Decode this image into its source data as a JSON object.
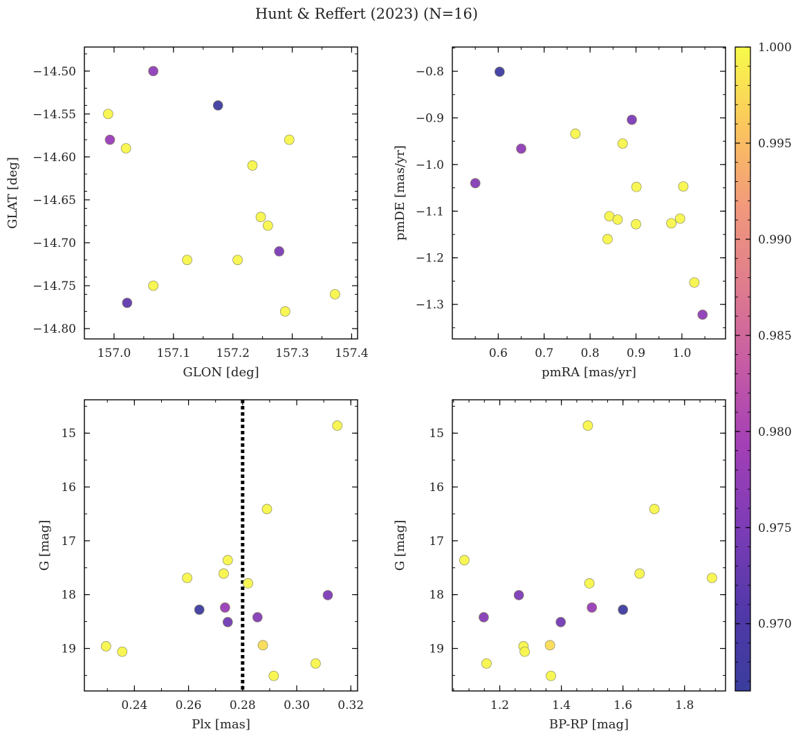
{
  "figure": {
    "title": "Hunt & Reffert (2023) (N=16)",
    "colormap": "plasma",
    "colorbar": {
      "range": [
        0.9665,
        1.0
      ],
      "ticks": [
        0.97,
        0.975,
        0.98,
        0.985,
        0.99,
        0.995,
        1.0
      ],
      "tick_labels": [
        "0.970",
        "0.975",
        "0.980",
        "0.985",
        "0.990",
        "0.995",
        "1.000"
      ]
    }
  },
  "chart_data": [
    {
      "type": "scatter",
      "xlabel": "GLON [deg]",
      "ylabel": "GLAT [deg]",
      "xlim": [
        156.95,
        157.41
      ],
      "ylim": [
        -14.812,
        -14.472
      ],
      "y_inverted": false,
      "xticks": [
        157.0,
        157.1,
        157.2,
        157.3,
        157.4
      ],
      "xtick_labels": [
        "157.0",
        "157.1",
        "157.2",
        "157.3",
        "157.4"
      ],
      "yticks": [
        -14.5,
        -14.55,
        -14.6,
        -14.65,
        -14.7,
        -14.75,
        -14.8
      ],
      "ytick_labels": [
        "−14.50",
        "−14.55",
        "−14.60",
        "−14.65",
        "−14.70",
        "−14.75",
        "−14.80"
      ],
      "points": [
        {
          "x": 157.066,
          "y": -14.5,
          "c": 0.977
        },
        {
          "x": 157.175,
          "y": -14.54,
          "c": 0.9675
        },
        {
          "x": 156.99,
          "y": -14.55,
          "c": 0.9995
        },
        {
          "x": 156.993,
          "y": -14.58,
          "c": 0.978
        },
        {
          "x": 157.02,
          "y": -14.59,
          "c": 0.9995
        },
        {
          "x": 157.295,
          "y": -14.58,
          "c": 0.9995
        },
        {
          "x": 157.233,
          "y": -14.61,
          "c": 0.9995
        },
        {
          "x": 157.247,
          "y": -14.67,
          "c": 0.9995
        },
        {
          "x": 157.259,
          "y": -14.68,
          "c": 0.9995
        },
        {
          "x": 157.278,
          "y": -14.71,
          "c": 0.975
        },
        {
          "x": 157.123,
          "y": -14.72,
          "c": 0.9995
        },
        {
          "x": 157.208,
          "y": -14.72,
          "c": 0.9995
        },
        {
          "x": 157.066,
          "y": -14.75,
          "c": 0.9995
        },
        {
          "x": 157.022,
          "y": -14.77,
          "c": 0.972
        },
        {
          "x": 157.372,
          "y": -14.76,
          "c": 0.9995
        },
        {
          "x": 157.288,
          "y": -14.78,
          "c": 0.9995
        }
      ]
    },
    {
      "type": "scatter",
      "xlabel": "pmRA [mas/yr]",
      "ylabel": "pmDE [mas/yr]",
      "xlim": [
        0.5,
        1.095
      ],
      "ylim": [
        -1.374,
        -0.748
      ],
      "y_inverted": false,
      "xticks": [
        0.6,
        0.7,
        0.8,
        0.9,
        1.0
      ],
      "xtick_labels": [
        "0.6",
        "0.7",
        "0.8",
        "0.9",
        "1.0"
      ],
      "yticks": [
        -0.8,
        -0.9,
        -1.0,
        -1.1,
        -1.2,
        -1.3
      ],
      "ytick_labels": [
        "−0.8",
        "−0.9",
        "−1.0",
        "−1.1",
        "−1.2",
        "−1.3"
      ],
      "points": [
        {
          "x": 0.603,
          "y": -0.801,
          "c": 0.9675
        },
        {
          "x": 0.891,
          "y": -0.904,
          "c": 0.975
        },
        {
          "x": 0.768,
          "y": -0.934,
          "c": 0.9995
        },
        {
          "x": 0.871,
          "y": -0.955,
          "c": 0.9995
        },
        {
          "x": 0.65,
          "y": -0.966,
          "c": 0.977
        },
        {
          "x": 0.55,
          "y": -1.04,
          "c": 0.976
        },
        {
          "x": 0.901,
          "y": -1.048,
          "c": 0.9995
        },
        {
          "x": 1.003,
          "y": -1.047,
          "c": 0.9995
        },
        {
          "x": 0.842,
          "y": -1.111,
          "c": 0.9995
        },
        {
          "x": 0.86,
          "y": -1.118,
          "c": 0.9995
        },
        {
          "x": 0.996,
          "y": -1.116,
          "c": 0.9995
        },
        {
          "x": 0.9,
          "y": -1.128,
          "c": 0.9995
        },
        {
          "x": 0.977,
          "y": -1.126,
          "c": 0.9995
        },
        {
          "x": 0.838,
          "y": -1.16,
          "c": 0.9995
        },
        {
          "x": 1.027,
          "y": -1.253,
          "c": 0.9995
        },
        {
          "x": 1.045,
          "y": -1.322,
          "c": 0.977
        }
      ]
    },
    {
      "type": "scatter",
      "xlabel": "Plx [mas]",
      "ylabel": "G [mag]",
      "xlim": [
        0.2215,
        0.3225
      ],
      "ylim": [
        14.38,
        19.79
      ],
      "y_inverted": true,
      "xticks": [
        0.24,
        0.26,
        0.28,
        0.3,
        0.32
      ],
      "xtick_labels": [
        "0.24",
        "0.26",
        "0.28",
        "0.30",
        "0.32"
      ],
      "yticks": [
        15,
        16,
        17,
        18,
        19
      ],
      "ytick_labels": [
        "15",
        "16",
        "17",
        "18",
        "19"
      ],
      "vline": {
        "x": 0.28,
        "style": "dotted",
        "color": "#000000"
      },
      "points": [
        {
          "x": 0.315,
          "y": 14.86,
          "c": 0.9995
        },
        {
          "x": 0.289,
          "y": 16.41,
          "c": 0.9995
        },
        {
          "x": 0.2745,
          "y": 17.36,
          "c": 0.9995
        },
        {
          "x": 0.273,
          "y": 17.61,
          "c": 0.9995
        },
        {
          "x": 0.2595,
          "y": 17.69,
          "c": 0.9995
        },
        {
          "x": 0.282,
          "y": 17.79,
          "c": 0.9995
        },
        {
          "x": 0.3115,
          "y": 18.01,
          "c": 0.975
        },
        {
          "x": 0.2735,
          "y": 18.24,
          "c": 0.978
        },
        {
          "x": 0.264,
          "y": 18.28,
          "c": 0.9675
        },
        {
          "x": 0.2855,
          "y": 18.42,
          "c": 0.976
        },
        {
          "x": 0.2745,
          "y": 18.51,
          "c": 0.974
        },
        {
          "x": 0.2875,
          "y": 18.94,
          "c": 0.9975
        },
        {
          "x": 0.2295,
          "y": 18.96,
          "c": 0.9995
        },
        {
          "x": 0.2355,
          "y": 19.06,
          "c": 0.9995
        },
        {
          "x": 0.307,
          "y": 19.28,
          "c": 0.9995
        },
        {
          "x": 0.2915,
          "y": 19.51,
          "c": 0.9995
        }
      ]
    },
    {
      "type": "scatter",
      "xlabel": "BP-RP [mag]",
      "ylabel": "G [mag]",
      "xlim": [
        1.046,
        1.933
      ],
      "ylim": [
        14.38,
        19.79
      ],
      "y_inverted": true,
      "xticks": [
        1.2,
        1.4,
        1.6,
        1.8
      ],
      "xtick_labels": [
        "1.2",
        "1.4",
        "1.6",
        "1.8"
      ],
      "yticks": [
        15,
        16,
        17,
        18,
        19
      ],
      "ytick_labels": [
        "15",
        "16",
        "17",
        "18",
        "19"
      ],
      "points": [
        {
          "x": 1.486,
          "y": 14.86,
          "c": 0.9995
        },
        {
          "x": 1.702,
          "y": 16.41,
          "c": 0.9995
        },
        {
          "x": 1.085,
          "y": 17.36,
          "c": 0.9995
        },
        {
          "x": 1.654,
          "y": 17.61,
          "c": 0.9995
        },
        {
          "x": 1.889,
          "y": 17.69,
          "c": 0.9995
        },
        {
          "x": 1.491,
          "y": 17.79,
          "c": 0.9995
        },
        {
          "x": 1.262,
          "y": 18.01,
          "c": 0.975
        },
        {
          "x": 1.499,
          "y": 18.24,
          "c": 0.978
        },
        {
          "x": 1.6,
          "y": 18.28,
          "c": 0.9675
        },
        {
          "x": 1.148,
          "y": 18.42,
          "c": 0.976
        },
        {
          "x": 1.398,
          "y": 18.51,
          "c": 0.974
        },
        {
          "x": 1.277,
          "y": 18.96,
          "c": 0.9995
        },
        {
          "x": 1.363,
          "y": 18.94,
          "c": 0.9975
        },
        {
          "x": 1.281,
          "y": 19.06,
          "c": 0.9995
        },
        {
          "x": 1.157,
          "y": 19.28,
          "c": 0.9995
        },
        {
          "x": 1.366,
          "y": 19.51,
          "c": 0.9995
        }
      ]
    }
  ]
}
